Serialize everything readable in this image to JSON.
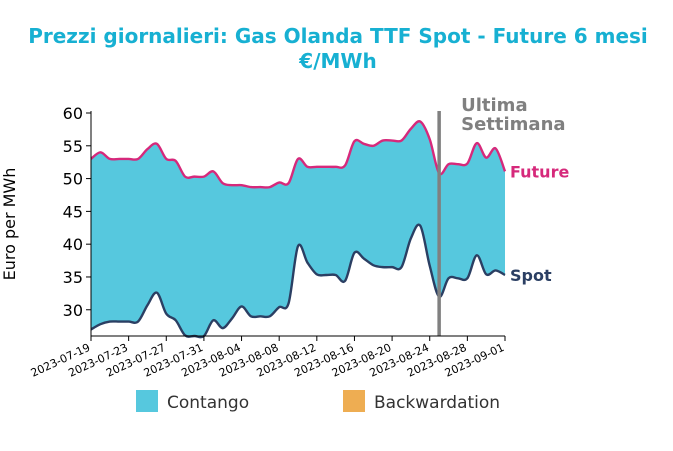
{
  "chart_data": {
    "type": "area",
    "title_line1": "Prezzi giornalieri: Gas Olanda TTF Spot - Future 6 mesi",
    "title_line2": "€/MWh",
    "ylabel": "Euro per MWh",
    "xlabel": "",
    "ylim": [
      26,
      60
    ],
    "yticks": [
      30,
      35,
      40,
      45,
      50,
      55,
      60
    ],
    "x_range": [
      "2023-07-19",
      "2023-09-01"
    ],
    "xticks": [
      "2023-07-19",
      "2023-07-23",
      "2023-07-27",
      "2023-07-31",
      "2023-08-04",
      "2023-08-08",
      "2023-08-12",
      "2023-08-16",
      "2023-08-20",
      "2023-08-24",
      "2023-08-28",
      "2023-09-01"
    ],
    "last_week_marker": "2023-08-25",
    "last_week_label_line1": "Ultima",
    "last_week_label_line2": "Settimana",
    "series": [
      {
        "name": "Future",
        "color": "#d6297b",
        "points": [
          [
            "2023-07-19",
            53.0
          ],
          [
            "2023-07-20",
            54.0
          ],
          [
            "2023-07-21",
            53.0
          ],
          [
            "2023-07-22",
            53.0
          ],
          [
            "2023-07-23",
            53.0
          ],
          [
            "2023-07-24",
            53.0
          ],
          [
            "2023-07-25",
            54.5
          ],
          [
            "2023-07-26",
            55.3
          ],
          [
            "2023-07-27",
            53.0
          ],
          [
            "2023-07-28",
            52.7
          ],
          [
            "2023-07-29",
            50.3
          ],
          [
            "2023-07-30",
            50.3
          ],
          [
            "2023-07-31",
            50.3
          ],
          [
            "2023-08-01",
            51.1
          ],
          [
            "2023-08-02",
            49.3
          ],
          [
            "2023-08-03",
            49.0
          ],
          [
            "2023-08-04",
            49.0
          ],
          [
            "2023-08-05",
            48.7
          ],
          [
            "2023-08-06",
            48.7
          ],
          [
            "2023-08-07",
            48.7
          ],
          [
            "2023-08-08",
            49.4
          ],
          [
            "2023-08-09",
            49.3
          ],
          [
            "2023-08-10",
            53.0
          ],
          [
            "2023-08-11",
            51.8
          ],
          [
            "2023-08-12",
            51.8
          ],
          [
            "2023-08-13",
            51.8
          ],
          [
            "2023-08-14",
            51.8
          ],
          [
            "2023-08-15",
            52.0
          ],
          [
            "2023-08-16",
            55.7
          ],
          [
            "2023-08-17",
            55.3
          ],
          [
            "2023-08-18",
            55.0
          ],
          [
            "2023-08-19",
            55.8
          ],
          [
            "2023-08-20",
            55.8
          ],
          [
            "2023-08-21",
            55.8
          ],
          [
            "2023-08-22",
            57.6
          ],
          [
            "2023-08-23",
            58.7
          ],
          [
            "2023-08-24",
            56.0
          ],
          [
            "2023-08-25",
            50.8
          ],
          [
            "2023-08-26",
            52.2
          ],
          [
            "2023-08-27",
            52.2
          ],
          [
            "2023-08-28",
            52.3
          ],
          [
            "2023-08-29",
            55.4
          ],
          [
            "2023-08-30",
            53.2
          ],
          [
            "2023-08-31",
            54.6
          ],
          [
            "2023-09-01",
            51.1
          ]
        ]
      },
      {
        "name": "Spot",
        "color": "#2b3f63",
        "points": [
          [
            "2023-07-19",
            27.0
          ],
          [
            "2023-07-20",
            27.8
          ],
          [
            "2023-07-21",
            28.2
          ],
          [
            "2023-07-22",
            28.2
          ],
          [
            "2023-07-23",
            28.2
          ],
          [
            "2023-07-24",
            28.2
          ],
          [
            "2023-07-25",
            30.7
          ],
          [
            "2023-07-26",
            32.6
          ],
          [
            "2023-07-27",
            29.4
          ],
          [
            "2023-07-28",
            28.4
          ],
          [
            "2023-07-29",
            26.1
          ],
          [
            "2023-07-30",
            26.0
          ],
          [
            "2023-07-31",
            26.0
          ],
          [
            "2023-08-01",
            28.4
          ],
          [
            "2023-08-02",
            27.2
          ],
          [
            "2023-08-03",
            28.7
          ],
          [
            "2023-08-04",
            30.5
          ],
          [
            "2023-08-05",
            29.0
          ],
          [
            "2023-08-06",
            29.0
          ],
          [
            "2023-08-07",
            29.0
          ],
          [
            "2023-08-08",
            30.4
          ],
          [
            "2023-08-09",
            31.0
          ],
          [
            "2023-08-10",
            39.7
          ],
          [
            "2023-08-11",
            37.2
          ],
          [
            "2023-08-12",
            35.4
          ],
          [
            "2023-08-13",
            35.3
          ],
          [
            "2023-08-14",
            35.3
          ],
          [
            "2023-08-15",
            34.4
          ],
          [
            "2023-08-16",
            38.7
          ],
          [
            "2023-08-17",
            37.8
          ],
          [
            "2023-08-18",
            36.8
          ],
          [
            "2023-08-19",
            36.5
          ],
          [
            "2023-08-20",
            36.5
          ],
          [
            "2023-08-21",
            36.5
          ],
          [
            "2023-08-22",
            40.9
          ],
          [
            "2023-08-23",
            42.8
          ],
          [
            "2023-08-24",
            36.7
          ],
          [
            "2023-08-25",
            32.0
          ],
          [
            "2023-08-26",
            34.8
          ],
          [
            "2023-08-27",
            34.8
          ],
          [
            "2023-08-28",
            34.8
          ],
          [
            "2023-08-29",
            38.3
          ],
          [
            "2023-08-30",
            35.4
          ],
          [
            "2023-08-31",
            36.0
          ],
          [
            "2023-09-01",
            35.3
          ]
        ]
      }
    ],
    "legend": [
      {
        "label": "Contango",
        "color": "#56c8de"
      },
      {
        "label": "Backwardation",
        "color": "#eead52"
      }
    ],
    "legend_position": "bottom",
    "fill_color": "#56c8de",
    "marker_color": "#808080",
    "title_color": "#17b0d2",
    "grid": false
  }
}
